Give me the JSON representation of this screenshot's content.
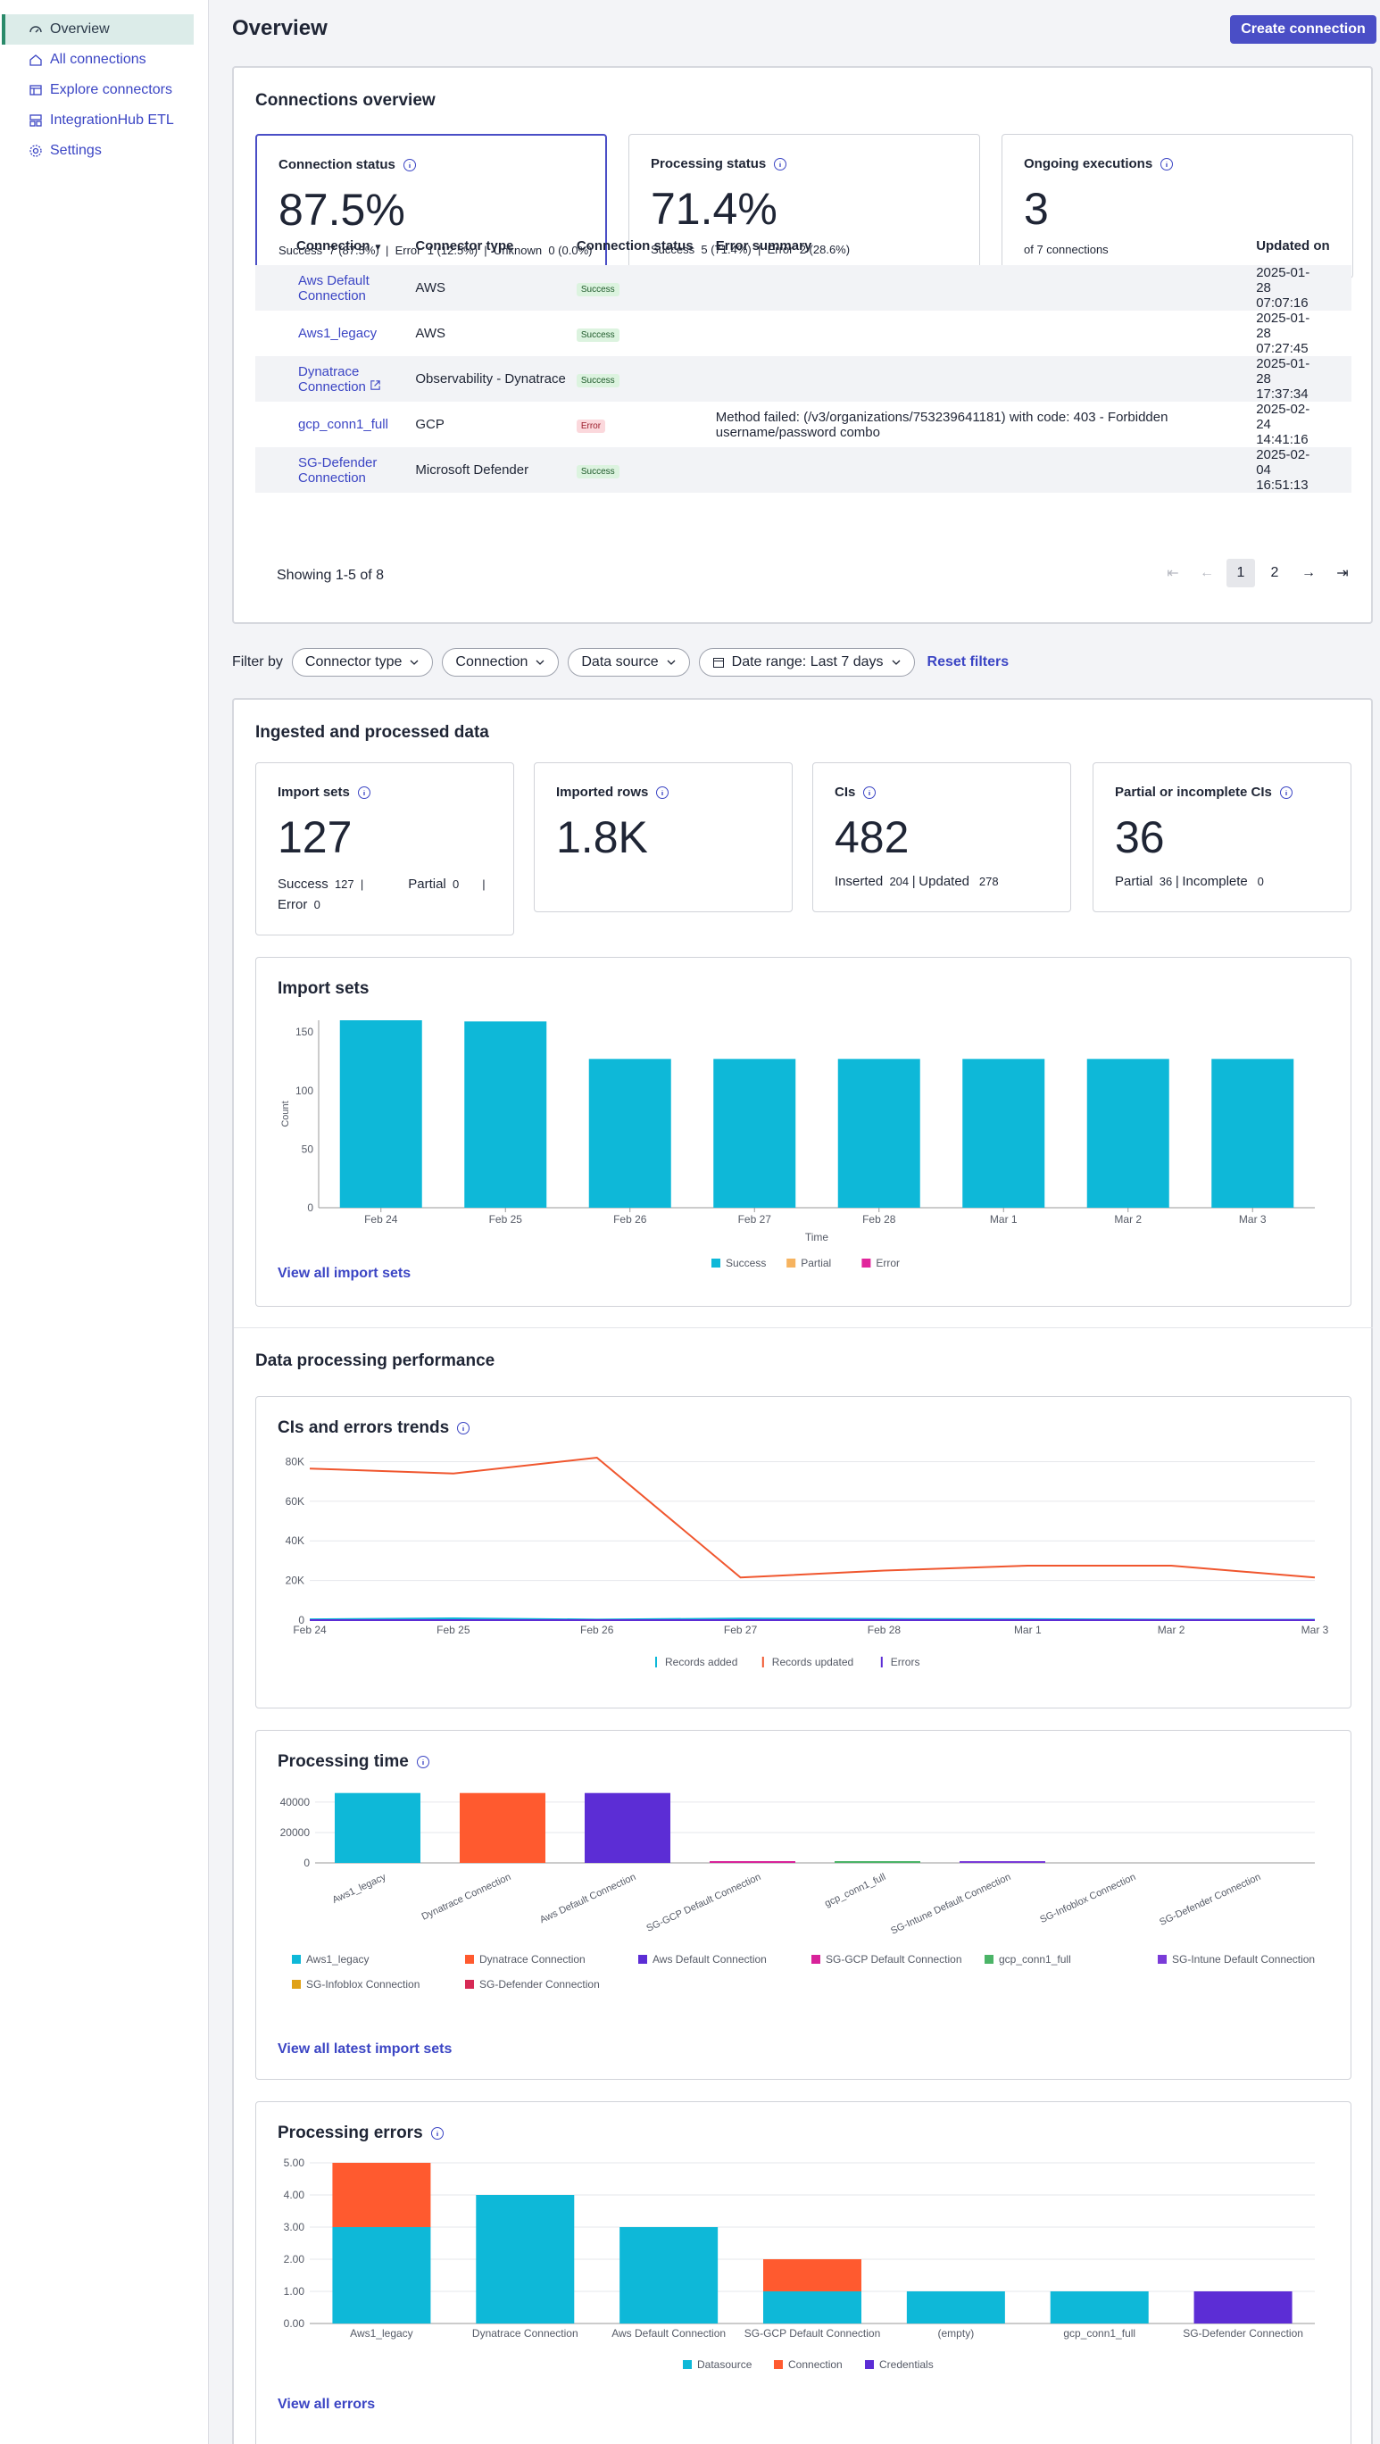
{
  "nav": {
    "items": [
      {
        "label": "Overview",
        "icon": "gauge-icon"
      },
      {
        "label": "All connections",
        "icon": "home-icon"
      },
      {
        "label": "Explore connectors",
        "icon": "explore-icon"
      },
      {
        "label": "IntegrationHub ETL",
        "icon": "etl-icon"
      },
      {
        "label": "Settings",
        "icon": "gear-icon"
      }
    ]
  },
  "header": {
    "title": "Overview",
    "create_label": "Create connection"
  },
  "overview": {
    "title": "Connections overview",
    "cards": {
      "status": {
        "title": "Connection status",
        "value": "87.5%",
        "success_label": "Success",
        "success_val": "7 (87.5%)",
        "error_label": "Error",
        "error_val": "1 (12.5%)",
        "unknown_label": "Unknown",
        "unknown_val": "0 (0.0%)"
      },
      "processing": {
        "title": "Processing status",
        "value": "71.4%",
        "success_label": "Success",
        "success_val": "5 (71.4%)",
        "error_label": "Error",
        "error_val": "2 (28.6%)"
      },
      "ongoing": {
        "title": "Ongoing executions",
        "value": "3",
        "sub": "of 7 connections"
      }
    },
    "table": {
      "headers": [
        "Connection",
        "Connector type",
        "Connection status",
        "Error summary",
        "Updated on"
      ],
      "rows": [
        {
          "name": "Aws Default Connection",
          "type": "AWS",
          "status": "Success",
          "error": "",
          "updated": "2025-01-28 07:07:16"
        },
        {
          "name": "Aws1_legacy",
          "type": "AWS",
          "status": "Success",
          "error": "",
          "updated": "2025-01-28 07:27:45"
        },
        {
          "name": "Dynatrace Connection",
          "type": "Observability - Dynatrace",
          "status": "Success",
          "error": "",
          "updated": "2025-01-28 17:37:34"
        },
        {
          "name": "gcp_conn1_full",
          "type": "GCP",
          "status": "Error",
          "error": "Method failed: (/v3/organizations/753239641181) with code: 403 - Forbidden username/password combo",
          "updated": "2025-02-24 14:41:16"
        },
        {
          "name": "SG-Defender Connection",
          "type": "Microsoft Defender",
          "status": "Success",
          "error": "",
          "updated": "2025-02-04 16:51:13"
        }
      ],
      "showing": "Showing 1-5 of 8",
      "pages": [
        "1",
        "2"
      ],
      "current_page": "1"
    }
  },
  "filters": {
    "label": "Filter by",
    "connector_type": "Connector type",
    "connection": "Connection",
    "data_source": "Data source",
    "date_range": "Date range: Last 7 days",
    "reset": "Reset filters"
  },
  "ingested": {
    "title": "Ingested and processed data",
    "import_sets": {
      "title": "Import sets",
      "value": "127",
      "success_label": "Success",
      "success_val": "127",
      "partial_label": "Partial",
      "partial_val": "0",
      "error_label": "Error",
      "error_val": "0"
    },
    "imported_rows": {
      "title": "Imported rows",
      "value": "1.8K"
    },
    "cis": {
      "title": "CIs",
      "value": "482",
      "inserted_label": "Inserted",
      "inserted_val": "204",
      "updated_label": "Updated",
      "updated_val": "278"
    },
    "partial_cis": {
      "title": "Partial or incomplete CIs",
      "value": "36",
      "partial_label": "Partial",
      "partial_val": "36",
      "incomplete_label": "Incomplete",
      "incomplete_val": "0"
    },
    "chart_title": "Import sets",
    "view_link": "View all import sets"
  },
  "performance": {
    "title": "Data processing performance",
    "trends_title": "CIs and errors trends",
    "time_title": "Processing time",
    "time_link": "View all latest import sets",
    "errors_title": "Processing errors",
    "errors_link": "View all errors"
  },
  "chart_data": [
    {
      "type": "bar",
      "title": "Import sets",
      "xlabel": "Time",
      "ylabel": "Count",
      "categories": [
        "Feb 24",
        "Feb 25",
        "Feb 26",
        "Feb 27",
        "Feb 28",
        "Mar 1",
        "Mar 2",
        "Mar 3"
      ],
      "yticks": [
        0,
        50,
        100,
        150
      ],
      "ylim": [
        0,
        160
      ],
      "series": [
        {
          "name": "Success",
          "color": "#0eb8d8",
          "values": [
            160,
            159,
            127,
            127,
            127,
            127,
            127,
            127
          ]
        },
        {
          "name": "Partial",
          "color": "#f6b35f",
          "values": [
            0,
            0,
            0,
            0,
            0,
            0,
            0,
            0
          ]
        },
        {
          "name": "Error",
          "color": "#e1259c",
          "values": [
            0,
            0,
            0,
            0,
            0,
            0,
            0,
            0
          ]
        }
      ],
      "legend": "bottom"
    },
    {
      "type": "line",
      "title": "CIs and errors trends",
      "categories": [
        "Feb 24",
        "Feb 25",
        "Feb 26",
        "Feb 27",
        "Feb 28",
        "Mar 1",
        "Mar 2",
        "Mar 3"
      ],
      "yticks": [
        0,
        20000,
        40000,
        60000,
        80000
      ],
      "ytick_labels": [
        "0",
        "20K",
        "40K",
        "60K",
        "80K"
      ],
      "ylim": [
        0,
        82000
      ],
      "series": [
        {
          "name": "Records added",
          "color": "#0eb8d8",
          "values": [
            400,
            900,
            300,
            800,
            600,
            500,
            300,
            200
          ]
        },
        {
          "name": "Records updated",
          "color": "#f0562e",
          "values": [
            76500,
            74000,
            82000,
            21500,
            25000,
            27500,
            27500,
            21500
          ]
        },
        {
          "name": "Errors",
          "color": "#5c2dd5",
          "values": [
            0,
            0,
            0,
            0,
            0,
            0,
            0,
            0
          ]
        }
      ],
      "legend": "bottom"
    },
    {
      "type": "bar",
      "title": "Processing time",
      "categories": [
        "Aws1_legacy",
        "Dynatrace Connection",
        "Aws Default Connection",
        "SG-GCP Default Connection",
        "gcp_conn1_full",
        "SG-Intune Default Connection",
        "SG-Infoblox Connection",
        "SG-Defender Connection"
      ],
      "yticks": [
        0,
        20000,
        40000
      ],
      "ylim": [
        0,
        47000
      ],
      "values": [
        46000,
        46000,
        46000,
        800,
        400,
        100,
        0,
        0
      ],
      "colors": [
        "#0eb8d8",
        "#ff5a2f",
        "#5c2dd5",
        "#d8239a",
        "#4bb467",
        "#7a3bd8",
        "#e0a116",
        "#d62a55"
      ],
      "legend_items": [
        "Aws1_legacy",
        "Dynatrace Connection",
        "Aws Default Connection",
        "SG-GCP Default Connection",
        "gcp_conn1_full",
        "SG-Intune Default Connection",
        "SG-Infoblox Connection",
        "SG-Defender Connection"
      ],
      "legend": "bottom"
    },
    {
      "type": "bar",
      "title": "Processing errors",
      "categories": [
        "Aws1_legacy",
        "Dynatrace Connection",
        "Aws Default Connection",
        "SG-GCP Default Connection",
        "(empty)",
        "gcp_conn1_full",
        "SG-Defender Connection"
      ],
      "yticks": [
        0,
        1,
        2,
        3,
        4,
        5
      ],
      "ytick_labels": [
        "0.00",
        "1.00",
        "2.00",
        "3.00",
        "4.00",
        "5.00"
      ],
      "ylim": [
        0,
        5
      ],
      "stacked": true,
      "series": [
        {
          "name": "Datasource",
          "color": "#0eb8d8",
          "values": [
            3,
            4,
            3,
            1,
            1,
            1,
            0
          ]
        },
        {
          "name": "Connection",
          "color": "#ff5a2f",
          "values": [
            2,
            0,
            0,
            1,
            0,
            0,
            0
          ]
        },
        {
          "name": "Credentials",
          "color": "#5c2dd5",
          "values": [
            0,
            0,
            0,
            0,
            0,
            0,
            1
          ]
        }
      ],
      "legend": "bottom"
    }
  ]
}
